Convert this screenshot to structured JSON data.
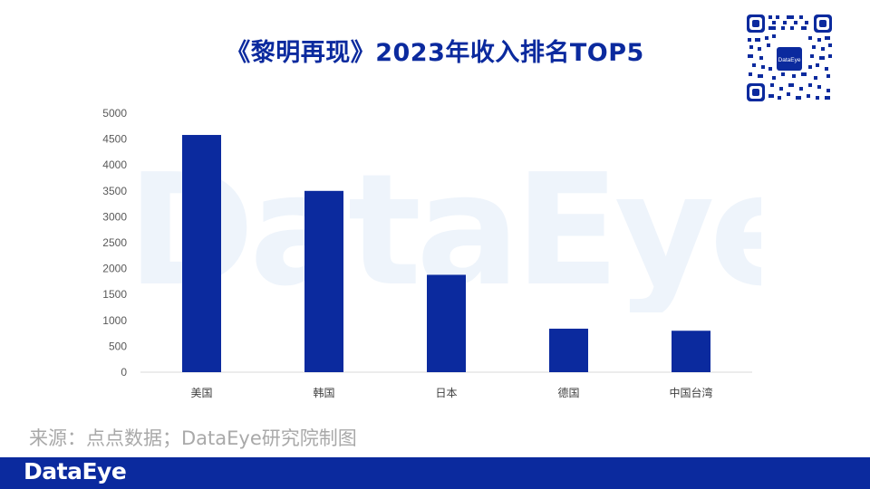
{
  "title": "《黎明再现》2023年收入排名TOP5",
  "watermark_text": "DataEye",
  "source_text": "来源：点点数据；DataEye研究院制图",
  "footer": {
    "logo_text": "DataEye",
    "background_color": "#0b2a9e"
  },
  "qr_code": {
    "icon": "qr-code-icon",
    "center_label": "DataEye"
  },
  "chart_data": {
    "type": "bar",
    "title": "",
    "xlabel": "",
    "ylabel": "",
    "categories": [
      "美国",
      "韩国",
      "日本",
      "德国",
      "中国台湾"
    ],
    "values": [
      4580,
      3500,
      1880,
      840,
      800
    ],
    "ylim": [
      0,
      5000
    ],
    "yticks": [
      0,
      500,
      1000,
      1500,
      2000,
      2500,
      3000,
      3500,
      4000,
      4500,
      5000
    ],
    "bar_color": "#0b2a9e",
    "grid": false,
    "legend": "none"
  }
}
